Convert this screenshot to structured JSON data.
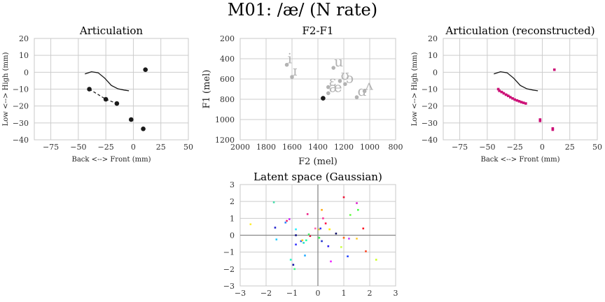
{
  "suptitle": "M01: /æ/ (N rate)",
  "chart_data": [
    {
      "id": "articulation",
      "type": "scatter",
      "title": "Articulation",
      "xlabel": "Back <--> Front (mm)",
      "ylabel": "Low <--> High (mm)",
      "xlim": [
        -90,
        50
      ],
      "ylim": [
        -40,
        20
      ],
      "xticks": [
        -75,
        -50,
        -25,
        0,
        25,
        50
      ],
      "yticks": [
        -40,
        -30,
        -20,
        -10,
        0,
        10,
        20
      ],
      "grid": true,
      "palate": {
        "x": [
          -44,
          -38,
          -32,
          -26,
          -20,
          -14,
          -8,
          -4
        ],
        "y": [
          -1,
          0.3,
          -0.3,
          -3.5,
          -7.8,
          -9.8,
          -10.6,
          -11
        ]
      },
      "points": {
        "x": [
          -40,
          -25,
          -15,
          -2,
          9,
          11
        ],
        "y": [
          -10,
          -16,
          -18.5,
          -28,
          -33.5,
          1.5
        ]
      },
      "dashed_segments": [
        [
          [
            -40,
            -10
          ],
          [
            -25,
            -16
          ]
        ],
        [
          [
            -25,
            -16
          ],
          [
            -15,
            -18.5
          ]
        ]
      ]
    },
    {
      "id": "formants",
      "type": "scatter",
      "title": "F2-F1",
      "xlabel": "F2 (mel)",
      "ylabel": "F1 (mel)",
      "xlim": [
        2000,
        800
      ],
      "ylim": [
        1200,
        200
      ],
      "xticks": [
        2000,
        1800,
        1600,
        1400,
        1200,
        1000,
        800
      ],
      "yticks": [
        200,
        400,
        600,
        800,
        1000,
        1200
      ],
      "grid": true,
      "vowels": [
        {
          "label": "i",
          "f2": 1640,
          "f1": 460
        },
        {
          "label": "ɪ",
          "f2": 1600,
          "f1": 580
        },
        {
          "label": "u",
          "f2": 1280,
          "f1": 490
        },
        {
          "label": "ʊ",
          "f2": 1230,
          "f1": 620
        },
        {
          "label": "ɔ",
          "f2": 1190,
          "f1": 650
        },
        {
          "label": "ɛ",
          "f2": 1320,
          "f1": 680
        },
        {
          "label": "æ",
          "f2": 1320,
          "f1": 740
        },
        {
          "label": "ɑ",
          "f2": 1100,
          "f1": 780
        },
        {
          "label": "ʌ",
          "f2": 1040,
          "f1": 720
        }
      ],
      "target": {
        "f2": 1360,
        "f1": 790
      }
    },
    {
      "id": "articulation_reconstructed",
      "type": "scatter",
      "title": "Articulation (reconstructed)",
      "xlabel": "Back <--> Front (mm)",
      "ylabel": "Low <--> High (mm)",
      "xlim": [
        -90,
        50
      ],
      "ylim": [
        -40,
        20
      ],
      "xticks": [
        -75,
        -50,
        -25,
        0,
        25,
        50
      ],
      "yticks": [
        -40,
        -30,
        -20,
        -10,
        0,
        10,
        20
      ],
      "grid": true,
      "palate": {
        "x": [
          -44,
          -38,
          -32,
          -26,
          -20,
          -14,
          -8,
          -4
        ],
        "y": [
          -1,
          0.3,
          -0.3,
          -3.5,
          -7.8,
          -9.8,
          -10.6,
          -11
        ]
      },
      "line": {
        "x": [
          -40,
          -36,
          -32,
          -28,
          -25,
          -21,
          -18,
          -15
        ],
        "y": [
          -10.2,
          -11.7,
          -13.2,
          -14.8,
          -16,
          -16.8,
          -17.6,
          -18.4
        ]
      },
      "points": {
        "x": [
          -40,
          -39,
          -37,
          -35,
          -33,
          -31,
          -29,
          -27,
          -25,
          -23,
          -21,
          -19,
          -17,
          -15,
          -2,
          -2,
          9.5,
          9.5,
          11
        ],
        "y": [
          -10,
          -11,
          -11.7,
          -12.5,
          -13.3,
          -14,
          -14.8,
          -15.5,
          -16.2,
          -16.7,
          -17.2,
          -17.7,
          -18.1,
          -18.5,
          -28,
          -28.8,
          -33.3,
          -34,
          1.5
        ]
      },
      "color": "#cc1177"
    },
    {
      "id": "latent",
      "type": "scatter",
      "title": "Latent space (Gaussian)",
      "xlim": [
        -3,
        3
      ],
      "ylim": [
        -3,
        3
      ],
      "xticks": [
        -3,
        -2,
        -1,
        0,
        1,
        2,
        3
      ],
      "yticks": [
        -3,
        -2,
        -1,
        0,
        1,
        2,
        3
      ],
      "grid": true,
      "points": [
        {
          "x": -1.7,
          "y": 1.95,
          "c": "#44ddaa"
        },
        {
          "x": -1.65,
          "y": 0.45,
          "c": "#2222cc"
        },
        {
          "x": -1.6,
          "y": -0.25,
          "c": "#22ccff"
        },
        {
          "x": -2.6,
          "y": 0.65,
          "c": "#ffee33"
        },
        {
          "x": -1.2,
          "y": 0.85,
          "c": "#ee2266"
        },
        {
          "x": -1.1,
          "y": 0.95,
          "c": "#cc22ff"
        },
        {
          "x": -1.25,
          "y": 0.75,
          "c": "#3388ff"
        },
        {
          "x": -0.85,
          "y": 0.35,
          "c": "#22eeff"
        },
        {
          "x": -0.85,
          "y": 0.0,
          "c": "#111188"
        },
        {
          "x": -0.85,
          "y": -0.55,
          "c": "#3333ff"
        },
        {
          "x": -0.65,
          "y": -0.35,
          "c": "#2255ff"
        },
        {
          "x": -0.55,
          "y": -0.45,
          "c": "#22ddcc"
        },
        {
          "x": -0.45,
          "y": -0.3,
          "c": "#22ffaa"
        },
        {
          "x": -0.35,
          "y": 0.05,
          "c": "#44ee66"
        },
        {
          "x": -0.3,
          "y": -0.05,
          "c": "#dd2244"
        },
        {
          "x": -0.4,
          "y": 1.25,
          "c": "#ee2288"
        },
        {
          "x": -0.1,
          "y": 0.4,
          "c": "#ff66aa"
        },
        {
          "x": 0.05,
          "y": 0.35,
          "c": "#ffdd22"
        },
        {
          "x": 0.1,
          "y": 0.4,
          "c": "#3333ff"
        },
        {
          "x": 0.15,
          "y": 1.5,
          "c": "#ffaa11"
        },
        {
          "x": 0.2,
          "y": 1.0,
          "c": "#ff3399"
        },
        {
          "x": 0.3,
          "y": 0.7,
          "c": "#ff1144"
        },
        {
          "x": 0.15,
          "y": -0.35,
          "c": "#2233cc"
        },
        {
          "x": 0.05,
          "y": -0.15,
          "c": "#33ff55"
        },
        {
          "x": 0.4,
          "y": -0.65,
          "c": "#3322ee"
        },
        {
          "x": 0.45,
          "y": 0.35,
          "c": "#ffee00"
        },
        {
          "x": 0.5,
          "y": -1.55,
          "c": "#ee22ff"
        },
        {
          "x": 0.7,
          "y": 0.1,
          "c": "#111166"
        },
        {
          "x": 0.9,
          "y": -0.7,
          "c": "#ccff44"
        },
        {
          "x": 1.0,
          "y": -0.15,
          "c": "#ff6611"
        },
        {
          "x": 1.0,
          "y": 2.25,
          "c": "#ee1133"
        },
        {
          "x": 1.15,
          "y": -1.25,
          "c": "#2244ff"
        },
        {
          "x": 1.2,
          "y": -0.2,
          "c": "#cc44ff"
        },
        {
          "x": 1.25,
          "y": 1.2,
          "c": "#66ff44"
        },
        {
          "x": 1.5,
          "y": 1.9,
          "c": "#dd22cc"
        },
        {
          "x": 1.55,
          "y": 1.5,
          "c": "#44ff44"
        },
        {
          "x": 1.5,
          "y": -0.2,
          "c": "#ffcc33"
        },
        {
          "x": 1.75,
          "y": 0.4,
          "c": "#ff1122"
        },
        {
          "x": 1.85,
          "y": -0.95,
          "c": "#ff4422"
        },
        {
          "x": 2.25,
          "y": -1.45,
          "c": "#ccff22"
        },
        {
          "x": -0.95,
          "y": -1.75,
          "c": "#1111aa"
        },
        {
          "x": -1.05,
          "y": -1.45,
          "c": "#22ffcc"
        },
        {
          "x": -0.5,
          "y": -1.2,
          "c": "#22aaff"
        },
        {
          "x": -0.6,
          "y": -0.3,
          "c": "#ffcc22"
        },
        {
          "x": -0.9,
          "y": -2.0,
          "c": "#44ff88"
        }
      ]
    }
  ]
}
